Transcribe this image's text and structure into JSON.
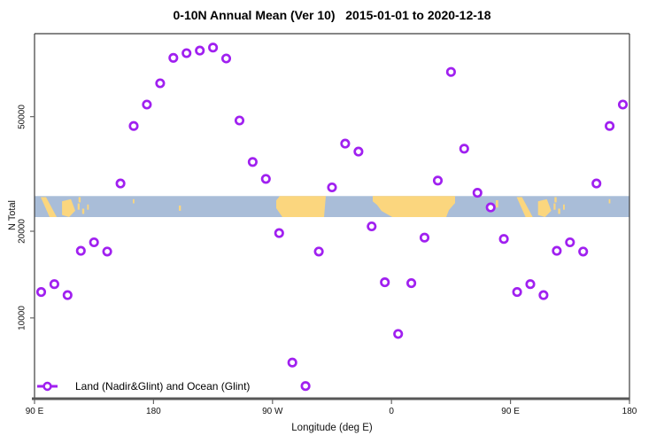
{
  "title": "0-10N Annual Mean (Ver 10)   2015-01-01 to 2020-12-18",
  "legend": {
    "label": "Land (Nadir&Glint) and Ocean (Glint)"
  },
  "axes": {
    "x": {
      "label": "Longitude (deg E)",
      "ticks": [
        {
          "deg": 90,
          "label": "90 E"
        },
        {
          "deg": 180,
          "label": "180"
        },
        {
          "deg": 270,
          "label": "90 W"
        },
        {
          "deg": 360,
          "label": "0"
        },
        {
          "deg": 450,
          "label": "90 E"
        },
        {
          "deg": 540,
          "label": "180"
        }
      ]
    },
    "y": {
      "label": "N Total",
      "scale": "log10",
      "ticks": [
        {
          "value": 10000,
          "label": "10000"
        },
        {
          "value": 20000,
          "label": "20000"
        },
        {
          "value": 50000,
          "label": "50000"
        }
      ]
    }
  },
  "colors": {
    "marker": "#a020f0",
    "ocean": "#a9bdd8",
    "land": "#fbd67e",
    "border": "#3d3d3d",
    "axis_line": "#575757",
    "tick": "#666666"
  },
  "chart_data": {
    "type": "scatter",
    "title": "0-10N Annual Mean (Ver 10)   2015-01-01 to 2020-12-18",
    "xlabel": "Longitude (deg E)",
    "ylabel": "N Total",
    "x_axis_deg_range": [
      90,
      540
    ],
    "x_note": "axis spans 450 deg of longitude; points for 95E-175E are plotted twice (axis deg 455-535 repeats 95-175)",
    "y_scale": "log",
    "ylim": [
      5250,
      97000
    ],
    "grid": false,
    "legend_position": "bottom-left",
    "series": [
      {
        "name": "Land (Nadir&Glint) and Ocean (Glint)",
        "marker": "open-circle",
        "color": "#a020f0",
        "points": [
          [
            95,
            12300
          ],
          [
            105,
            13100
          ],
          [
            115,
            12000
          ],
          [
            125,
            17100
          ],
          [
            135,
            18300
          ],
          [
            145,
            17000
          ],
          [
            155,
            29300
          ],
          [
            165,
            46400
          ],
          [
            175,
            55100
          ],
          [
            185,
            65300
          ],
          [
            195,
            80000
          ],
          [
            205,
            83100
          ],
          [
            215,
            84800
          ],
          [
            225,
            86900
          ],
          [
            235,
            79600
          ],
          [
            245,
            48500
          ],
          [
            255,
            34800
          ],
          [
            265,
            30400
          ],
          [
            275,
            19700
          ],
          [
            285,
            7000
          ],
          [
            295,
            5800
          ],
          [
            305,
            17000
          ],
          [
            315,
            28400
          ],
          [
            325,
            40300
          ],
          [
            335,
            37800
          ],
          [
            345,
            20800
          ],
          [
            355,
            13300
          ],
          [
            365,
            8800
          ],
          [
            375,
            13200
          ],
          [
            385,
            19000
          ],
          [
            395,
            30000
          ],
          [
            405,
            71500
          ],
          [
            415,
            38700
          ],
          [
            425,
            27200
          ],
          [
            435,
            24200
          ],
          [
            445,
            18800
          ],
          [
            455,
            12300
          ],
          [
            465,
            13100
          ],
          [
            475,
            12000
          ],
          [
            485,
            17100
          ],
          [
            495,
            18300
          ],
          [
            505,
            17000
          ],
          [
            515,
            29300
          ],
          [
            525,
            46400
          ],
          [
            535,
            55100
          ]
        ]
      }
    ],
    "map_band": {
      "description": "0-10N latitude world-map strip drawn across the plot",
      "value_top": 26500,
      "value_bottom": 22400,
      "island_repeat_offsets_deg": [
        0,
        360
      ],
      "island_polygons": [
        [
          [
            94.7,
            0.05
          ],
          [
            98.7,
            0.05
          ],
          [
            106.8,
            1.0
          ],
          [
            101.4,
            1.0
          ]
        ],
        [
          [
            110.8,
            0.25
          ],
          [
            117.5,
            0.15
          ],
          [
            120.8,
            0.7
          ],
          [
            116.1,
            1.0
          ],
          [
            110.8,
            0.9
          ]
        ]
      ],
      "island_specks": [
        [
          123.3,
          0.05,
          1.6,
          0.25
        ],
        [
          122.6,
          0.35,
          1.5,
          0.3
        ],
        [
          126.0,
          0.6,
          1.6,
          0.25
        ],
        [
          129.8,
          0.4,
          1.3,
          0.25
        ],
        [
          164.3,
          0.15,
          1.2,
          0.2
        ],
        [
          199.2,
          0.45,
          1.5,
          0.25
        ]
      ],
      "single_specks": [
        [
          438.9,
          0.2,
          1.8,
          0.35
        ],
        [
          432.9,
          0.5,
          0.8,
          0.2
        ]
      ],
      "continent_polygons": [
        [
          [
            272.8,
            0.21
          ],
          [
            275.5,
            0.0
          ],
          [
            310.3,
            0.0
          ],
          [
            309.0,
            1.0
          ],
          [
            277.5,
            1.0
          ],
          [
            272.8,
            0.58
          ]
        ],
        [
          [
            345.8,
            0.0
          ],
          [
            408.1,
            0.0
          ],
          [
            408.1,
            0.33
          ],
          [
            403.4,
            0.67
          ],
          [
            401.4,
            1.0
          ],
          [
            360.6,
            1.0
          ],
          [
            352.5,
            0.71
          ],
          [
            349.1,
            0.42
          ],
          [
            345.8,
            0.25
          ]
        ]
      ]
    }
  }
}
